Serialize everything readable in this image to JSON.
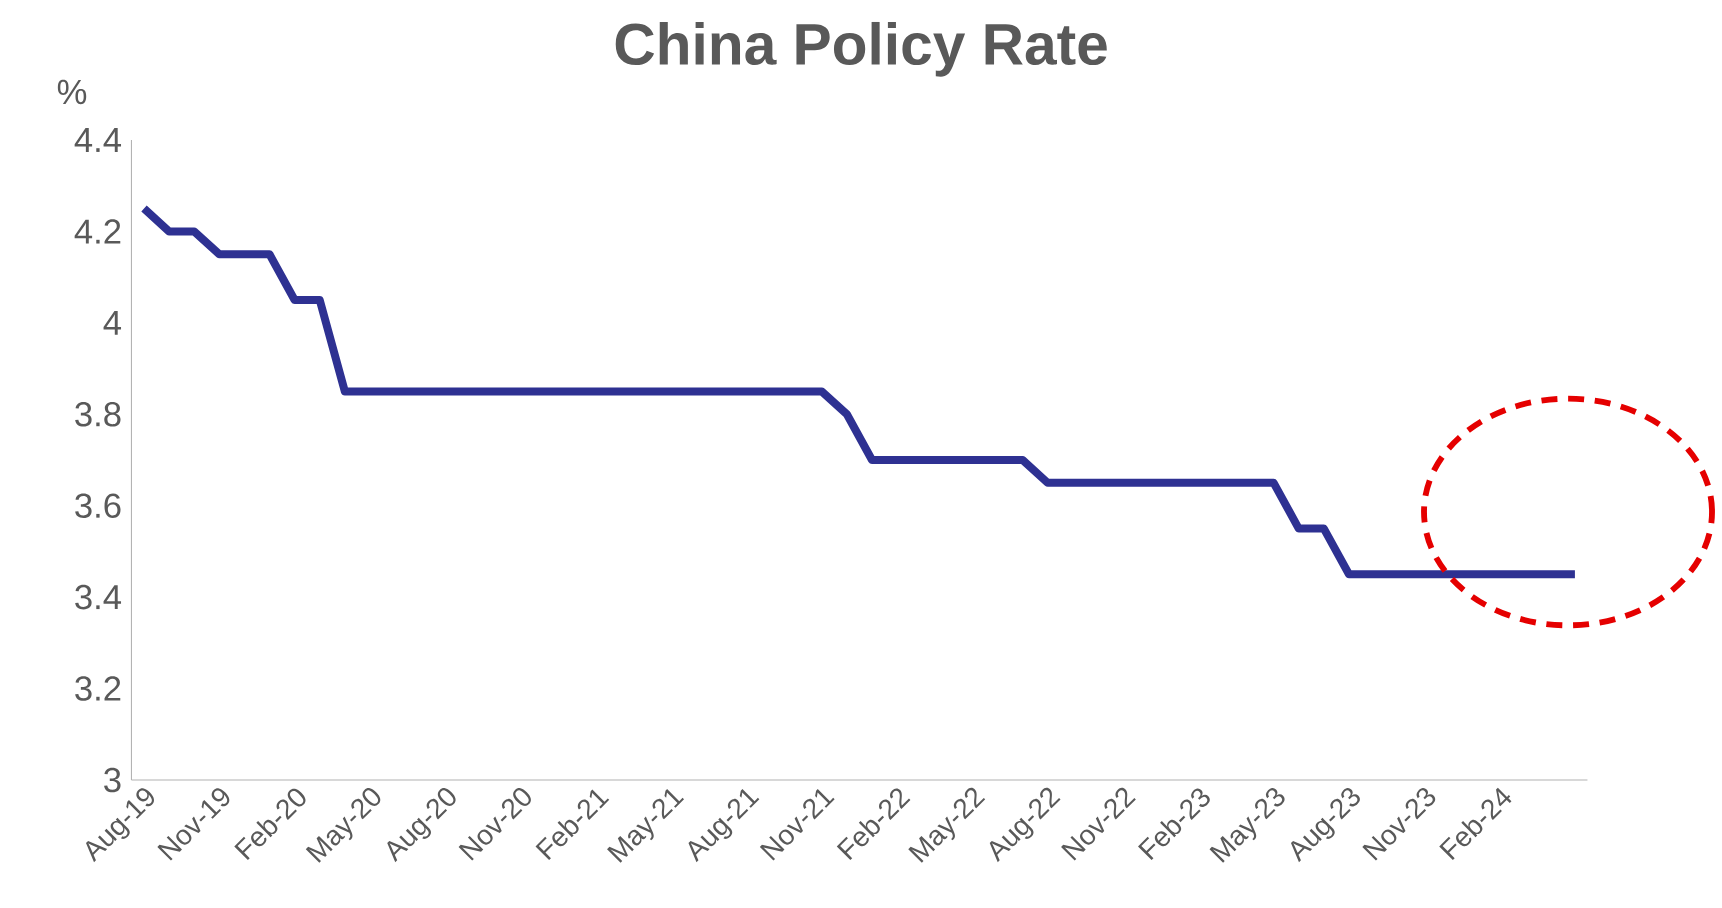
{
  "chart_data": {
    "type": "line",
    "title": "China Policy Rate",
    "ylabel": "%",
    "categories": [
      "Aug-19",
      null,
      null,
      "Nov-19",
      null,
      null,
      "Feb-20",
      null,
      null,
      "May-20",
      null,
      null,
      "Aug-20",
      null,
      null,
      "Nov-20",
      null,
      null,
      "Feb-21",
      null,
      null,
      "May-21",
      null,
      null,
      "Aug-21",
      null,
      null,
      "Nov-21",
      null,
      null,
      "Feb-22",
      null,
      null,
      "May-22",
      null,
      null,
      "Aug-22",
      null,
      null,
      "Nov-22",
      null,
      null,
      "Feb-23",
      null,
      null,
      "May-23",
      null,
      null,
      "Aug-23",
      null,
      null,
      "Nov-23",
      null,
      null,
      "Feb-24",
      null,
      null,
      null
    ],
    "values": [
      4.25,
      4.2,
      4.2,
      4.15,
      4.15,
      4.15,
      4.05,
      4.05,
      3.85,
      3.85,
      3.85,
      3.85,
      3.85,
      3.85,
      3.85,
      3.85,
      3.85,
      3.85,
      3.85,
      3.85,
      3.85,
      3.85,
      3.85,
      3.85,
      3.85,
      3.85,
      3.85,
      3.85,
      3.8,
      3.7,
      3.7,
      3.7,
      3.7,
      3.7,
      3.7,
      3.7,
      3.65,
      3.65,
      3.65,
      3.65,
      3.65,
      3.65,
      3.65,
      3.65,
      3.65,
      3.65,
      3.55,
      3.55,
      3.45,
      3.45,
      3.45,
      3.45,
      3.45,
      3.45,
      3.45,
      3.45,
      3.45,
      3.45
    ],
    "color": "#2e3192",
    "ylim": [
      3,
      4.4
    ],
    "yticks": [
      3,
      3.2,
      3.4,
      3.6,
      3.8,
      4,
      4.2,
      4.4
    ],
    "grid": false
  }
}
